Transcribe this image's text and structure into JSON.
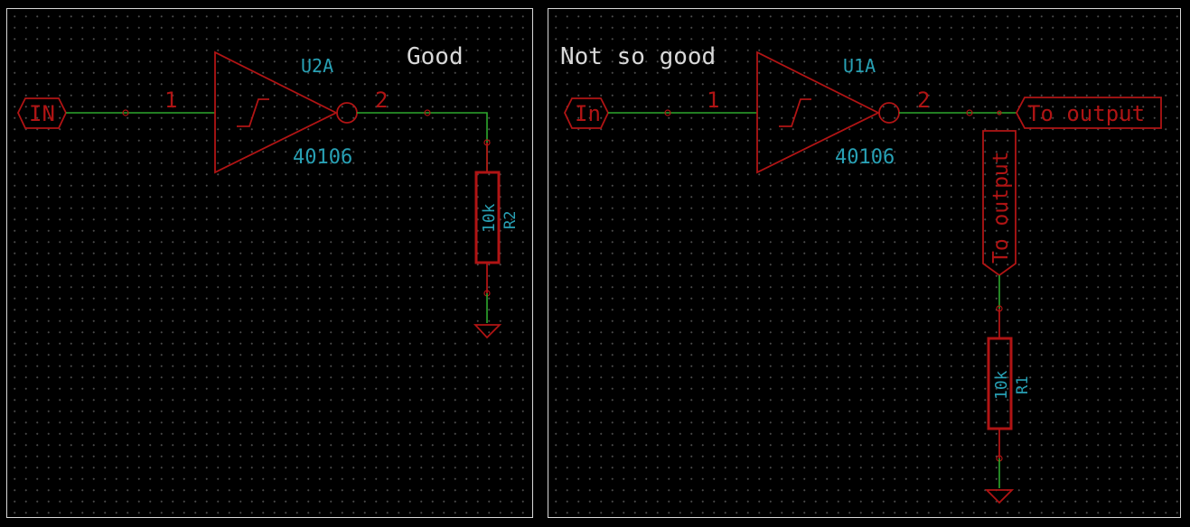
{
  "panels": {
    "left": {
      "note": "Good",
      "input_label": "IN",
      "gate_ref": "U2A",
      "gate_value": "40106",
      "pin_in": "1",
      "pin_out": "2",
      "res_value": "10k",
      "res_ref": "R2"
    },
    "right": {
      "note": "Not so good",
      "input_label": "In",
      "gate_ref": "U1A",
      "gate_value": "40106",
      "pin_in": "1",
      "pin_out": "2",
      "output_label": "To output",
      "output_label_vertical": "To output",
      "res_value": "10k",
      "res_ref": "R1"
    }
  },
  "colors": {
    "component": "#b01414",
    "wire": "#2ea82e",
    "reference": "#28a0b4",
    "note": "#d8d8d8",
    "grid_dot": "#4a4a4a"
  }
}
